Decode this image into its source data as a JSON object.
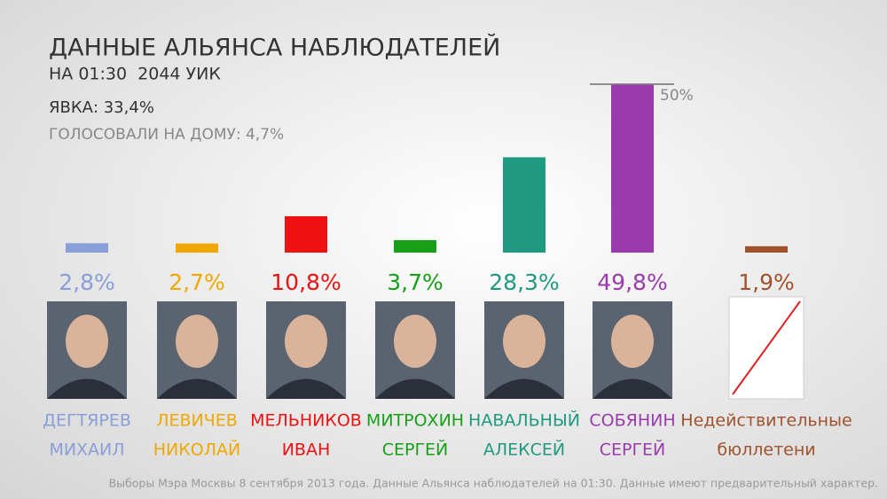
{
  "chart_data": {
    "type": "bar",
    "title": "ДАННЫЕ АЛЬЯНСА НАБЛЮДАТЕЛЕЙ",
    "subtitle": "НА 01:30  2044 УИК",
    "annotations": [
      "ЯВКА: 33,4%",
      "ГОЛОСОВАЛИ НА ДОМУ: 4,7%"
    ],
    "footnote": "Выборы Мэра Москвы 8 сентября 2013 года. Данные Альянса наблюдателей на 01:30. Данные имеют предварительный характер.",
    "categories": [
      [
        "ДЕГТЯРЕВ",
        "МИХАИЛ"
      ],
      [
        "ЛЕВИЧЕВ",
        "НИКОЛАЙ"
      ],
      [
        "МЕЛЬНИКОВ",
        "ИВАН"
      ],
      [
        "МИТРОХИН",
        "СЕРГЕЙ"
      ],
      [
        "НАВАЛЬНЫЙ",
        "АЛЕКСЕЙ"
      ],
      [
        "СОБЯНИН",
        "СЕРГЕЙ"
      ],
      [
        "Недействительные",
        "бюллетени"
      ]
    ],
    "values": [
      2.8,
      2.7,
      10.8,
      3.7,
      28.3,
      49.8,
      1.9
    ],
    "value_labels": [
      "2,8%",
      "2,7%",
      "10,8%",
      "3,7%",
      "28,3%",
      "49,8%",
      "1,9%"
    ],
    "colors": [
      "#8a9fd8",
      "#f0a800",
      "#ee1111",
      "#17a017",
      "#1f9980",
      "#9b3aad",
      "#a0522d"
    ],
    "ylim": [
      0,
      50
    ],
    "reference_line": {
      "value": 50,
      "label": "50%"
    }
  }
}
